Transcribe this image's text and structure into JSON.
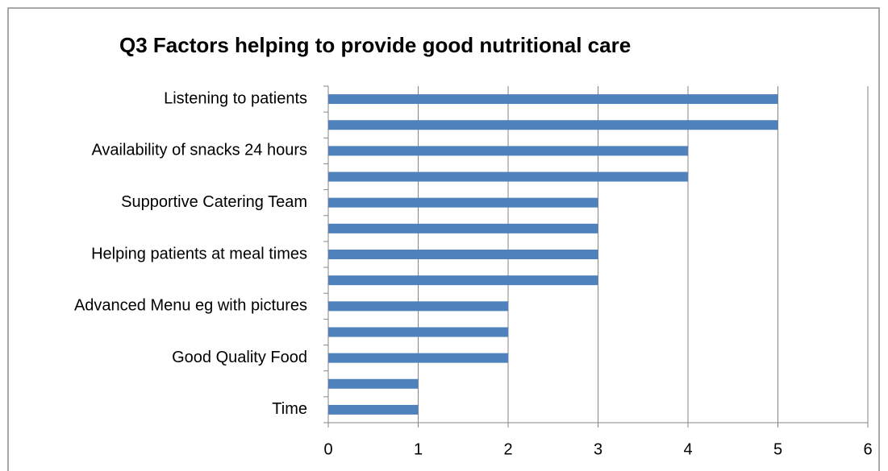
{
  "chart_data": {
    "type": "bar",
    "orientation": "horizontal",
    "title": "Q3 Factors helping to provide good nutritional care",
    "categories": [
      "Listening to patients",
      null,
      "Availability of snacks 24 hours",
      null,
      "Supportive Catering Team",
      null,
      "Helping patients at meal times",
      null,
      "Advanced Menu eg with pictures",
      null,
      "Good Quality Food",
      null,
      "Time"
    ],
    "values": [
      5,
      5,
      4,
      4,
      3,
      3,
      3,
      3,
      2,
      2,
      2,
      1,
      1
    ],
    "color": "#4f81bd",
    "xlim": [
      0,
      6
    ],
    "xticks": [
      0,
      1,
      2,
      3,
      4,
      5,
      6
    ],
    "grid": true
  }
}
